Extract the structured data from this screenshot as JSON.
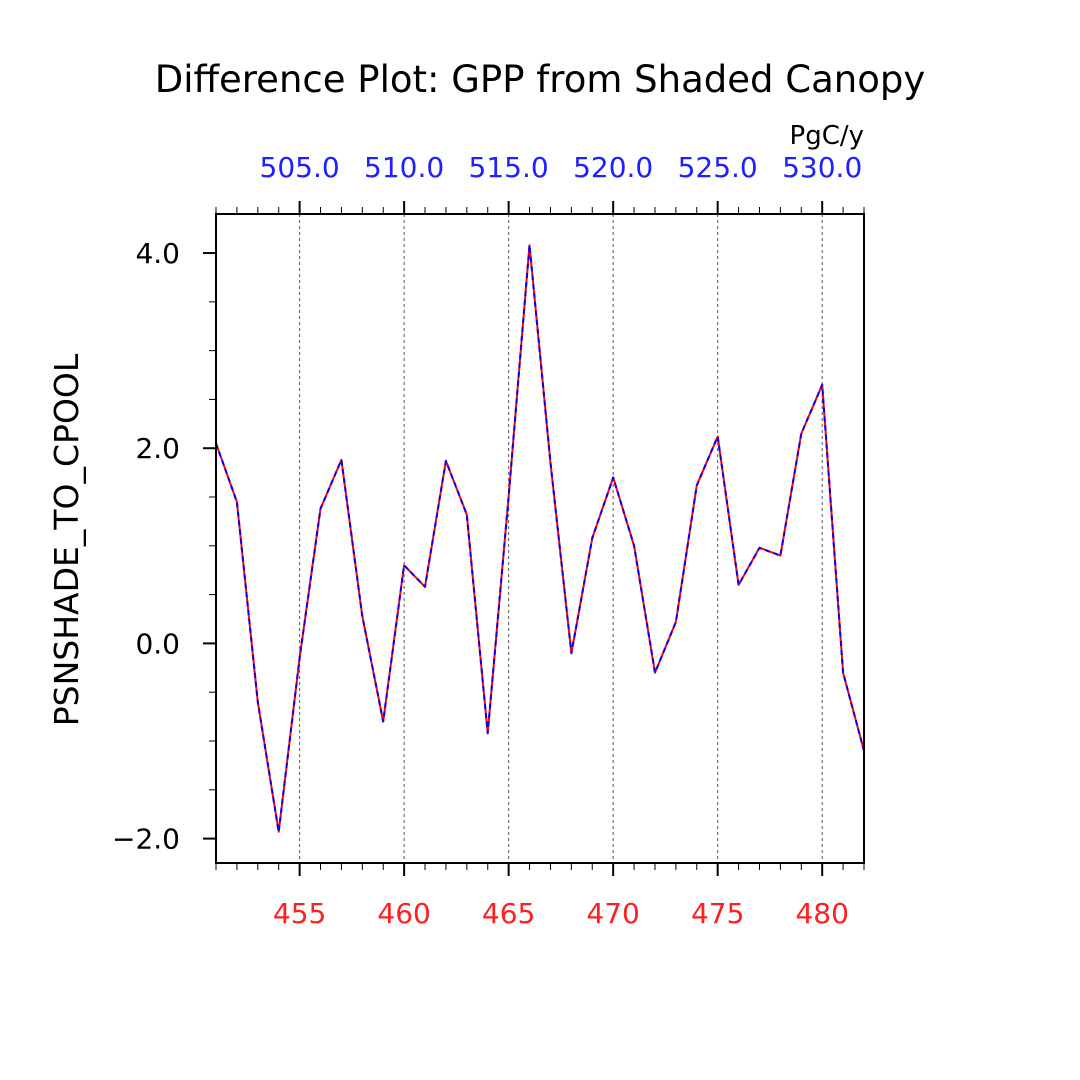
{
  "chart_data": {
    "type": "line",
    "title": "Difference Plot: GPP from Shaded Canopy",
    "ylabel": "PSNSHADE_TO_CPOOL",
    "units": "PgC/y",
    "xlim": [
      451,
      482
    ],
    "ylim": [
      -2.25,
      4.4
    ],
    "grid": "vertical dashed at major x ticks",
    "bottom_axis": {
      "color": "#ff2020",
      "ticks": [
        455,
        460,
        465,
        470,
        475,
        480
      ],
      "tick_labels": [
        "455",
        "460",
        "465",
        "470",
        "475",
        "480"
      ]
    },
    "top_axis": {
      "color": "#2020ff",
      "ticks": [
        455,
        460,
        465,
        470,
        475,
        480
      ],
      "tick_labels": [
        "505.0",
        "510.0",
        "515.0",
        "520.0",
        "525.0",
        "530.0"
      ]
    },
    "y_ticks": [
      -2.0,
      0.0,
      2.0,
      4.0
    ],
    "y_tick_labels": [
      "−2.0",
      "0.0",
      "2.0",
      "4.0"
    ],
    "x": [
      451,
      452,
      453,
      454,
      455,
      456,
      457,
      458,
      459,
      460,
      461,
      462,
      463,
      464,
      465,
      466,
      467,
      468,
      469,
      470,
      471,
      472,
      473,
      474,
      475,
      476,
      477,
      478,
      479,
      480,
      481,
      482
    ],
    "series": [
      {
        "color": "#ff0000",
        "style": "solid",
        "values": [
          2.05,
          1.45,
          -0.6,
          -1.93,
          -0.15,
          1.38,
          1.88,
          0.28,
          -0.8,
          0.8,
          0.58,
          1.87,
          1.32,
          -0.92,
          1.5,
          4.08,
          1.85,
          -0.1,
          1.08,
          1.7,
          1.0,
          -0.3,
          0.22,
          1.62,
          2.12,
          0.6,
          0.98,
          0.9,
          2.15,
          2.65,
          -0.3,
          -1.1
        ]
      },
      {
        "color": "#0000ff",
        "style": "dashed",
        "values": [
          2.05,
          1.45,
          -0.6,
          -1.93,
          -0.15,
          1.38,
          1.88,
          0.28,
          -0.8,
          0.8,
          0.58,
          1.87,
          1.32,
          -0.92,
          1.5,
          4.08,
          1.85,
          -0.1,
          1.08,
          1.7,
          1.0,
          -0.3,
          0.22,
          1.62,
          2.12,
          0.6,
          0.98,
          0.9,
          2.15,
          2.65,
          -0.3,
          -1.1
        ]
      }
    ]
  }
}
